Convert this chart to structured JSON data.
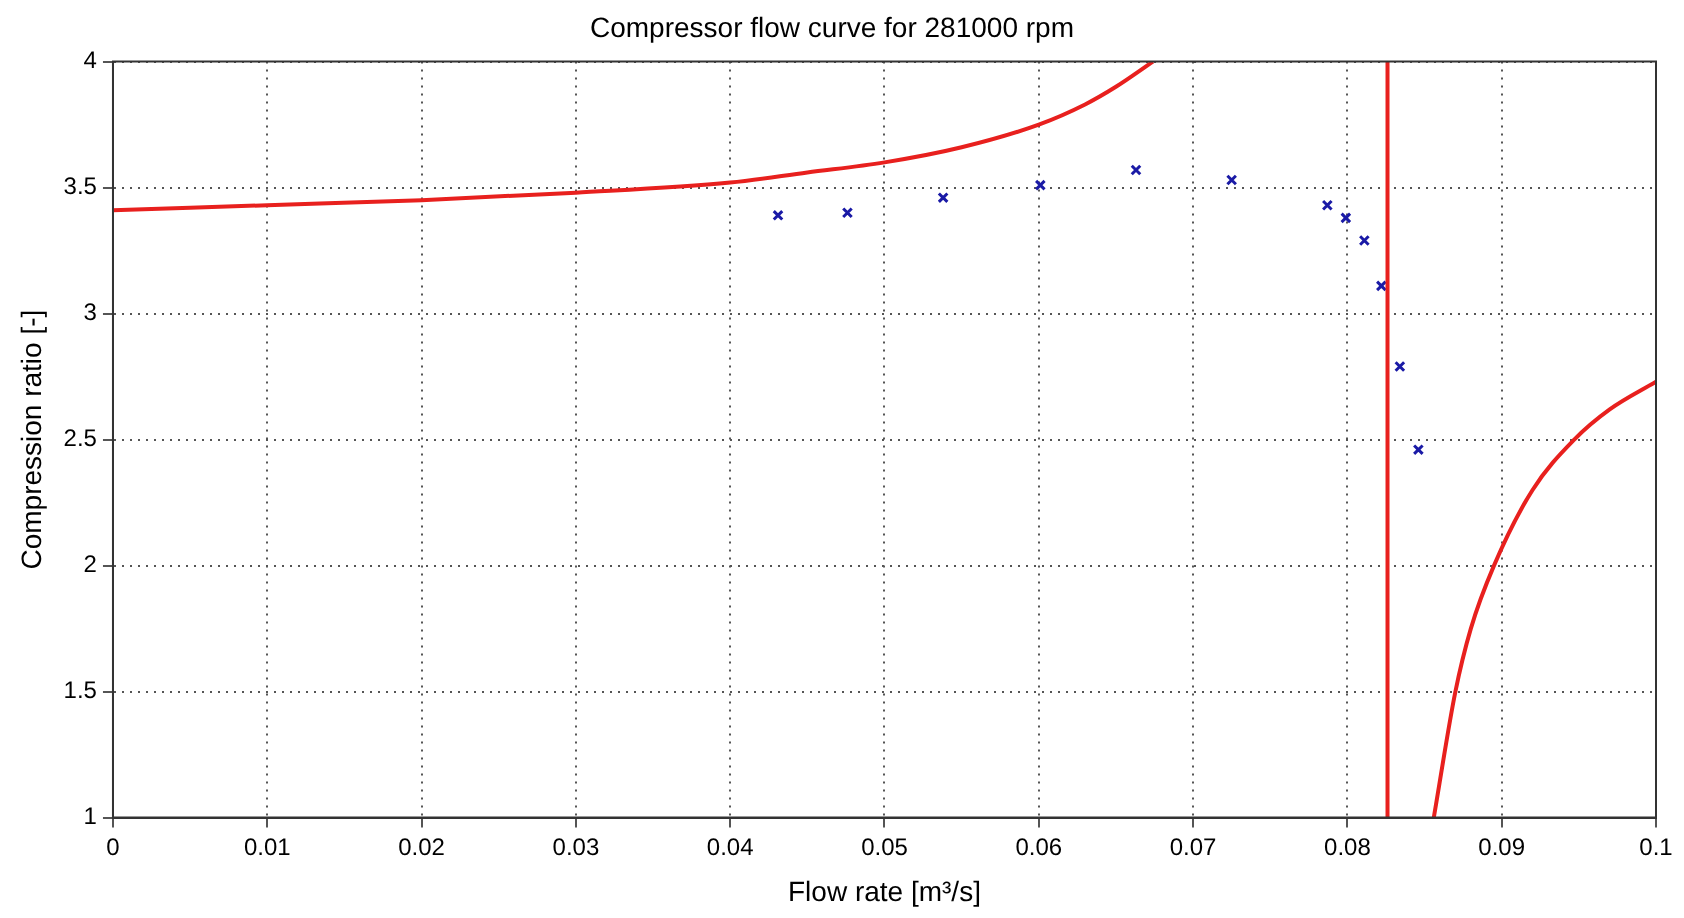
{
  "chart_data": {
    "type": "scatter",
    "title": "Compressor flow curve for 281000 rpm",
    "xlabel": "Flow rate [m³/s]",
    "ylabel": "Compression ratio [-]",
    "xlim": [
      0,
      0.1
    ],
    "xticks": [
      0,
      0.01,
      0.02,
      0.03,
      0.04,
      0.05,
      0.06,
      0.07,
      0.08,
      0.09,
      0.1
    ],
    "ylim": [
      1,
      4
    ],
    "yticks": [
      1,
      1.5,
      2,
      2.5,
      3,
      3.5,
      4
    ],
    "grid": true,
    "legend": false,
    "ref_lines": [
      {
        "axis": "x",
        "value": 0.0826,
        "color": "#e8201e",
        "line_style": "solid"
      }
    ],
    "series": [
      {
        "type": "line",
        "color": "#e8201e",
        "marker": "none",
        "x": [
          0,
          0.01,
          0.02,
          0.03,
          0.04,
          0.045,
          0.05,
          0.055,
          0.06,
          0.063,
          0.065,
          0.0674,
          null,
          0.0856,
          0.087,
          0.088,
          0.0895,
          0.092,
          0.0947,
          0.097,
          0.1
        ],
        "values": [
          3.41,
          3.43,
          3.45,
          3.48,
          3.52,
          3.56,
          3.6,
          3.66,
          3.75,
          3.83,
          3.9,
          4,
          null,
          1,
          1.5,
          1.75,
          2,
          2.3,
          2.5,
          2.62,
          2.73
        ]
      },
      {
        "color": "#1a1aa6",
        "marker": "cross",
        "x": [
          0.0431,
          0.0476,
          0.0538,
          0.0601,
          0.0663,
          0.0725,
          0.0787,
          0.0799,
          0.0811,
          0.0822,
          0.0834,
          0.0846
        ],
        "values": [
          3.39,
          3.4,
          3.46,
          3.51,
          3.57,
          3.53,
          3.43,
          3.38,
          3.29,
          3.11,
          2.79,
          2.46
        ]
      }
    ]
  }
}
